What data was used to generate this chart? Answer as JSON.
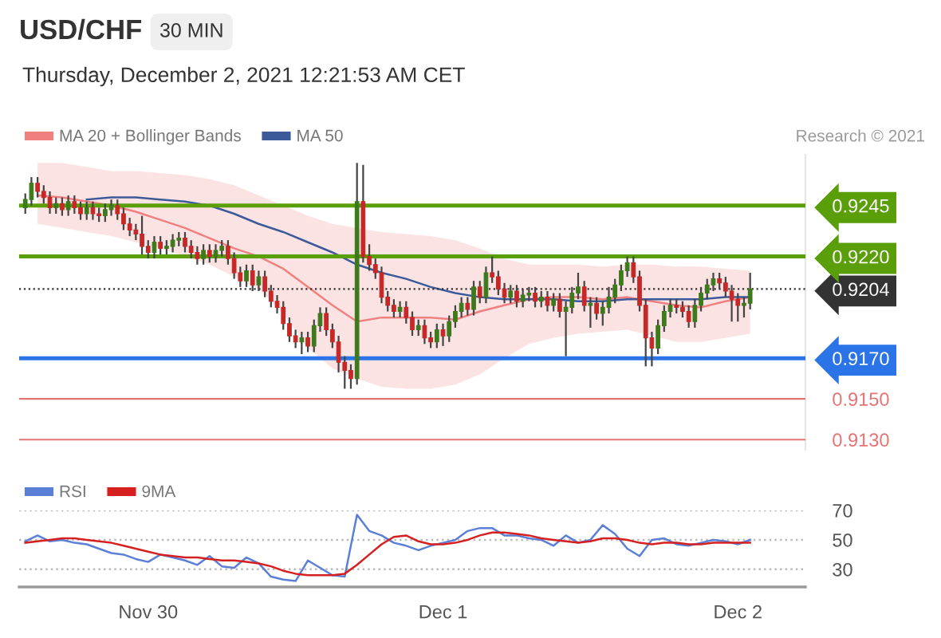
{
  "chart_data": [
    {
      "type": "candlestick",
      "title": "USD/CHF",
      "subtitle": "30 MIN",
      "annotations": [
        "Thursday, December 2, 2021 12:21:53 AM CET",
        "Research © 2021"
      ],
      "x": [
        "2021-11-29T14:00",
        "2021-11-29T14:30",
        "2021-11-29T15:00",
        "2021-11-29T15:30",
        "2021-11-29T16:00",
        "2021-11-29T16:30",
        "2021-11-29T17:00",
        "2021-11-29T17:30",
        "2021-11-29T18:00",
        "2021-11-29T18:30",
        "2021-11-29T19:00",
        "2021-11-29T19:30",
        "2021-11-29T20:00",
        "2021-11-29T20:30",
        "2021-11-29T21:00",
        "2021-11-29T21:30",
        "2021-11-29T22:00",
        "2021-11-29T22:30",
        "2021-11-29T23:00",
        "2021-11-29T23:30",
        "2021-11-30T00:00",
        "2021-11-30T00:30",
        "2021-11-30T01:00",
        "2021-11-30T01:30",
        "2021-11-30T02:00",
        "2021-11-30T02:30",
        "2021-11-30T03:00",
        "2021-11-30T03:30",
        "2021-11-30T04:00",
        "2021-11-30T04:30",
        "2021-11-30T05:00",
        "2021-11-30T05:30",
        "2021-11-30T06:00",
        "2021-11-30T06:30",
        "2021-11-30T07:00",
        "2021-11-30T07:30",
        "2021-11-30T08:00",
        "2021-11-30T08:30",
        "2021-11-30T09:00",
        "2021-11-30T09:30",
        "2021-11-30T10:00",
        "2021-11-30T10:30",
        "2021-11-30T11:00",
        "2021-11-30T11:30",
        "2021-11-30T12:00",
        "2021-11-30T12:30",
        "2021-11-30T13:00",
        "2021-11-30T13:30",
        "2021-11-30T14:00",
        "2021-11-30T14:30",
        "2021-11-30T15:00",
        "2021-11-30T15:30",
        "2021-11-30T16:00",
        "2021-11-30T16:30",
        "2021-11-30T17:00",
        "2021-11-30T17:30",
        "2021-11-30T18:00",
        "2021-11-30T18:30",
        "2021-11-30T19:00",
        "2021-11-30T19:30",
        "2021-11-30T20:00",
        "2021-11-30T20:30",
        "2021-11-30T21:00",
        "2021-11-30T21:30",
        "2021-11-30T22:00",
        "2021-11-30T22:30",
        "2021-11-30T23:00",
        "2021-11-30T23:30",
        "2021-12-01T00:00",
        "2021-12-01T00:30",
        "2021-12-01T01:00",
        "2021-12-01T01:30",
        "2021-12-01T02:00",
        "2021-12-01T02:30",
        "2021-12-01T03:00",
        "2021-12-01T03:30",
        "2021-12-01T04:00",
        "2021-12-01T04:30",
        "2021-12-01T05:00",
        "2021-12-01T05:30",
        "2021-12-01T06:00",
        "2021-12-01T06:30",
        "2021-12-01T07:00",
        "2021-12-01T07:30",
        "2021-12-01T08:00",
        "2021-12-01T08:30",
        "2021-12-01T09:00",
        "2021-12-01T09:30",
        "2021-12-01T10:00",
        "2021-12-01T10:30",
        "2021-12-01T11:00",
        "2021-12-01T11:30",
        "2021-12-01T12:00",
        "2021-12-01T12:30",
        "2021-12-01T13:00",
        "2021-12-01T13:30",
        "2021-12-01T14:00",
        "2021-12-01T14:30",
        "2021-12-01T15:00",
        "2021-12-01T15:30",
        "2021-12-01T16:00",
        "2021-12-01T16:30",
        "2021-12-01T17:00",
        "2021-12-01T17:30",
        "2021-12-01T18:00",
        "2021-12-01T18:30",
        "2021-12-01T19:00",
        "2021-12-01T19:30",
        "2021-12-01T20:00",
        "2021-12-01T20:30",
        "2021-12-01T21:00",
        "2021-12-01T21:30",
        "2021-12-01T22:00",
        "2021-12-01T22:30",
        "2021-12-01T23:00",
        "2021-12-01T23:30",
        "2021-12-02T00:00",
        "2021-12-02T00:30",
        "2021-12-02T01:00"
      ],
      "ohlc": [
        [
          0.9244,
          0.9251,
          0.9241,
          0.9248
        ],
        [
          0.9248,
          0.9259,
          0.9245,
          0.9256
        ],
        [
          0.9256,
          0.9259,
          0.9249,
          0.9252
        ],
        [
          0.9252,
          0.9255,
          0.9246,
          0.9249
        ],
        [
          0.9249,
          0.9252,
          0.9241,
          0.9244
        ],
        [
          0.9244,
          0.9249,
          0.9241,
          0.9246
        ],
        [
          0.9246,
          0.9249,
          0.924,
          0.9243
        ],
        [
          0.9243,
          0.925,
          0.924,
          0.9247
        ],
        [
          0.9247,
          0.925,
          0.9241,
          0.9244
        ],
        [
          0.9244,
          0.9247,
          0.9238,
          0.9241
        ],
        [
          0.9241,
          0.9247,
          0.9238,
          0.9244
        ],
        [
          0.9244,
          0.9247,
          0.9238,
          0.9241
        ],
        [
          0.9241,
          0.9244,
          0.9237,
          0.924
        ],
        [
          0.924,
          0.9246,
          0.9237,
          0.9243
        ],
        [
          0.9243,
          0.9248,
          0.924,
          0.9245
        ],
        [
          0.9245,
          0.9248,
          0.9238,
          0.9241
        ],
        [
          0.9241,
          0.9244,
          0.9233,
          0.9236
        ],
        [
          0.9236,
          0.9239,
          0.923,
          0.9233
        ],
        [
          0.9233,
          0.9236,
          0.9228,
          0.9231
        ],
        [
          0.9231,
          0.924,
          0.9221,
          0.9225
        ],
        [
          0.9225,
          0.9228,
          0.9219,
          0.9222
        ],
        [
          0.9222,
          0.923,
          0.9219,
          0.9227
        ],
        [
          0.9227,
          0.923,
          0.9221,
          0.9224
        ],
        [
          0.9224,
          0.9228,
          0.9221,
          0.9225
        ],
        [
          0.9225,
          0.9231,
          0.9222,
          0.9228
        ],
        [
          0.9228,
          0.9232,
          0.9225,
          0.9229
        ],
        [
          0.9229,
          0.9232,
          0.9222,
          0.9225
        ],
        [
          0.9225,
          0.9228,
          0.9219,
          0.9222
        ],
        [
          0.9222,
          0.9225,
          0.9216,
          0.9219
        ],
        [
          0.9219,
          0.9226,
          0.9216,
          0.9223
        ],
        [
          0.9223,
          0.9226,
          0.9217,
          0.922
        ],
        [
          0.922,
          0.9226,
          0.9217,
          0.9223
        ],
        [
          0.9223,
          0.9228,
          0.922,
          0.9225
        ],
        [
          0.9225,
          0.9228,
          0.9216,
          0.9219
        ],
        [
          0.9219,
          0.9222,
          0.9209,
          0.9212
        ],
        [
          0.9212,
          0.9215,
          0.9205,
          0.9208
        ],
        [
          0.9208,
          0.9216,
          0.9205,
          0.9213
        ],
        [
          0.9213,
          0.9216,
          0.9203,
          0.9206
        ],
        [
          0.9206,
          0.9213,
          0.9203,
          0.921
        ],
        [
          0.921,
          0.9213,
          0.92,
          0.9203
        ],
        [
          0.9203,
          0.9206,
          0.9195,
          0.9198
        ],
        [
          0.9198,
          0.9201,
          0.9192,
          0.9195
        ],
        [
          0.9195,
          0.9198,
          0.9184,
          0.9187
        ],
        [
          0.9187,
          0.919,
          0.9178,
          0.9181
        ],
        [
          0.9181,
          0.9184,
          0.9175,
          0.9178
        ],
        [
          0.9178,
          0.9183,
          0.9172,
          0.918
        ],
        [
          0.918,
          0.9183,
          0.9173,
          0.9176
        ],
        [
          0.9176,
          0.9189,
          0.9173,
          0.9186
        ],
        [
          0.9186,
          0.9195,
          0.9183,
          0.9192
        ],
        [
          0.9192,
          0.9195,
          0.9181,
          0.9184
        ],
        [
          0.9184,
          0.9187,
          0.9175,
          0.9178
        ],
        [
          0.9178,
          0.9181,
          0.9163,
          0.9168
        ],
        [
          0.9168,
          0.9171,
          0.9155,
          0.9164
        ],
        [
          0.9164,
          0.9167,
          0.9155,
          0.916
        ],
        [
          0.916,
          0.9266,
          0.9157,
          0.9247
        ],
        [
          0.9247,
          0.9265,
          0.9217,
          0.922
        ],
        [
          0.922,
          0.9226,
          0.9213,
          0.9216
        ],
        [
          0.9216,
          0.9219,
          0.9209,
          0.9212
        ],
        [
          0.9212,
          0.9215,
          0.9197,
          0.92
        ],
        [
          0.92,
          0.9203,
          0.9193,
          0.9196
        ],
        [
          0.9196,
          0.9199,
          0.919,
          0.9193
        ],
        [
          0.9193,
          0.9198,
          0.919,
          0.9195
        ],
        [
          0.9195,
          0.9198,
          0.9187,
          0.919
        ],
        [
          0.919,
          0.9193,
          0.9181,
          0.9184
        ],
        [
          0.9184,
          0.9189,
          0.9181,
          0.9186
        ],
        [
          0.9186,
          0.9189,
          0.9177,
          0.918
        ],
        [
          0.918,
          0.9183,
          0.9175,
          0.9178
        ],
        [
          0.9178,
          0.9187,
          0.9175,
          0.9184
        ],
        [
          0.9184,
          0.9187,
          0.9176,
          0.9181
        ],
        [
          0.9181,
          0.9191,
          0.9178,
          0.9188
        ],
        [
          0.9188,
          0.9196,
          0.9185,
          0.9193
        ],
        [
          0.9193,
          0.92,
          0.919,
          0.9197
        ],
        [
          0.9197,
          0.92,
          0.9191,
          0.9194
        ],
        [
          0.9194,
          0.9208,
          0.9191,
          0.9205
        ],
        [
          0.9205,
          0.9208,
          0.9197,
          0.92
        ],
        [
          0.92,
          0.9215,
          0.9197,
          0.9212
        ],
        [
          0.9212,
          0.922,
          0.9207,
          0.921
        ],
        [
          0.921,
          0.9213,
          0.9201,
          0.9204
        ],
        [
          0.9204,
          0.9207,
          0.9197,
          0.92
        ],
        [
          0.92,
          0.9206,
          0.9197,
          0.9203
        ],
        [
          0.9203,
          0.9206,
          0.9195,
          0.9198
        ],
        [
          0.9198,
          0.9204,
          0.9195,
          0.9201
        ],
        [
          0.9201,
          0.9205,
          0.9198,
          0.9202
        ],
        [
          0.9202,
          0.9205,
          0.9195,
          0.9198
        ],
        [
          0.9198,
          0.9203,
          0.9195,
          0.92
        ],
        [
          0.92,
          0.9203,
          0.9193,
          0.9196
        ],
        [
          0.9196,
          0.9202,
          0.9193,
          0.9199
        ],
        [
          0.9199,
          0.9202,
          0.919,
          0.9193
        ],
        [
          0.9193,
          0.9198,
          0.9171,
          0.9195
        ],
        [
          0.9195,
          0.9205,
          0.9192,
          0.9202
        ],
        [
          0.9202,
          0.9212,
          0.9199,
          0.9205
        ],
        [
          0.9205,
          0.9208,
          0.9193,
          0.9196
        ],
        [
          0.9196,
          0.92,
          0.9185,
          0.9197
        ],
        [
          0.9197,
          0.92,
          0.9189,
          0.9192
        ],
        [
          0.9192,
          0.9198,
          0.9186,
          0.9195
        ],
        [
          0.9195,
          0.9205,
          0.9192,
          0.92
        ],
        [
          0.92,
          0.9209,
          0.9197,
          0.9206
        ],
        [
          0.9206,
          0.9216,
          0.9203,
          0.9213
        ],
        [
          0.9213,
          0.922,
          0.921,
          0.9217
        ],
        [
          0.9217,
          0.922,
          0.9207,
          0.921
        ],
        [
          0.921,
          0.9213,
          0.9193,
          0.9196
        ],
        [
          0.9196,
          0.9199,
          0.9166,
          0.918
        ],
        [
          0.918,
          0.9183,
          0.9166,
          0.9175
        ],
        [
          0.9175,
          0.9189,
          0.9172,
          0.9186
        ],
        [
          0.9186,
          0.9196,
          0.9183,
          0.9193
        ],
        [
          0.9193,
          0.9199,
          0.919,
          0.9196
        ],
        [
          0.9196,
          0.9199,
          0.9192,
          0.9195
        ],
        [
          0.9195,
          0.9198,
          0.919,
          0.9193
        ],
        [
          0.9193,
          0.9196,
          0.9185,
          0.9188
        ],
        [
          0.9188,
          0.9199,
          0.9185,
          0.9196
        ],
        [
          0.9196,
          0.9205,
          0.9193,
          0.9202
        ],
        [
          0.9202,
          0.9209,
          0.9199,
          0.9206
        ],
        [
          0.9206,
          0.9212,
          0.9203,
          0.9209
        ],
        [
          0.9209,
          0.9212,
          0.9204,
          0.9207
        ],
        [
          0.9207,
          0.921,
          0.92,
          0.9203
        ],
        [
          0.9203,
          0.9206,
          0.9188,
          0.9199
        ],
        [
          0.9199,
          0.9202,
          0.9188,
          0.9196
        ],
        [
          0.9196,
          0.92,
          0.919,
          0.9197
        ],
        [
          0.9197,
          0.9212,
          0.9194,
          0.9204
        ]
      ],
      "series": [
        {
          "type": "line",
          "name": "MA 20 + Bollinger Bands",
          "color": "#f08080",
          "x": [
            "2021-11-29T15:00",
            "2021-11-29T17:00",
            "2021-11-29T19:00",
            "2021-11-29T21:00",
            "2021-11-29T23:00",
            "2021-11-30T01:00",
            "2021-11-30T03:00",
            "2021-11-30T05:00",
            "2021-11-30T07:00",
            "2021-11-30T09:00",
            "2021-11-30T11:00",
            "2021-11-30T13:00",
            "2021-11-30T15:00",
            "2021-11-30T17:00",
            "2021-11-30T19:00",
            "2021-11-30T21:00",
            "2021-11-30T23:00",
            "2021-12-01T01:00",
            "2021-12-01T03:00",
            "2021-12-01T05:00",
            "2021-12-01T07:00",
            "2021-12-01T09:00",
            "2021-12-01T11:00",
            "2021-12-01T13:00",
            "2021-12-01T15:00",
            "2021-12-01T17:00",
            "2021-12-01T19:00",
            "2021-12-01T21:00",
            "2021-12-01T23:00",
            "2021-12-02T01:00"
          ],
          "values": [
            0.925,
            0.9249,
            0.9247,
            0.9245,
            0.9242,
            0.9238,
            0.9234,
            0.9229,
            0.9224,
            0.922,
            0.9214,
            0.9205,
            0.9196,
            0.9188,
            0.919,
            0.919,
            0.919,
            0.9189,
            0.9193,
            0.9196,
            0.9199,
            0.92,
            0.92,
            0.9199,
            0.92,
            0.9198,
            0.9196,
            0.9195,
            0.9198,
            0.92
          ],
          "upper": [
            0.9266,
            0.9266,
            0.9264,
            0.9262,
            0.9262,
            0.9261,
            0.926,
            0.9258,
            0.9255,
            0.925,
            0.9245,
            0.924,
            0.9236,
            0.9234,
            0.9232,
            0.9231,
            0.923,
            0.9228,
            0.9224,
            0.9219,
            0.9216,
            0.9216,
            0.9216,
            0.9215,
            0.9216,
            0.9216,
            0.9215,
            0.9215,
            0.9214,
            0.9213
          ],
          "lower": [
            0.9236,
            0.9234,
            0.9232,
            0.923,
            0.9227,
            0.9224,
            0.922,
            0.9216,
            0.921,
            0.9204,
            0.9192,
            0.9175,
            0.9165,
            0.916,
            0.9156,
            0.9155,
            0.9155,
            0.9157,
            0.9162,
            0.917,
            0.9177,
            0.918,
            0.9182,
            0.9183,
            0.9184,
            0.9181,
            0.9178,
            0.9178,
            0.918,
            0.9182
          ]
        },
        {
          "type": "line",
          "name": "MA 50",
          "color": "#3c5a99",
          "x": [
            "2021-11-29T19:00",
            "2021-11-29T21:00",
            "2021-11-29T23:00",
            "2021-11-30T01:00",
            "2021-11-30T03:00",
            "2021-11-30T05:00",
            "2021-11-30T07:00",
            "2021-11-30T09:00",
            "2021-11-30T11:00",
            "2021-11-30T13:00",
            "2021-11-30T15:00",
            "2021-11-30T17:00",
            "2021-11-30T19:00",
            "2021-11-30T21:00",
            "2021-11-30T23:00",
            "2021-12-01T01:00",
            "2021-12-01T03:00",
            "2021-12-01T05:00",
            "2021-12-01T07:00",
            "2021-12-01T09:00",
            "2021-12-01T11:00",
            "2021-12-01T13:00",
            "2021-12-01T15:00",
            "2021-12-01T17:00",
            "2021-12-01T19:00",
            "2021-12-01T21:00",
            "2021-12-01T23:00",
            "2021-12-02T01:00"
          ],
          "values": [
            0.9248,
            0.9249,
            0.9249,
            0.9248,
            0.9247,
            0.9245,
            0.9241,
            0.9236,
            0.9232,
            0.9227,
            0.9222,
            0.9216,
            0.9212,
            0.9209,
            0.9205,
            0.9202,
            0.92,
            0.9199,
            0.9199,
            0.9199,
            0.9198,
            0.9198,
            0.9199,
            0.9199,
            0.9199,
            0.9199,
            0.92,
            0.92
          ]
        }
      ],
      "ref_lines": [
        {
          "axis": "y",
          "value": 0.9245,
          "color": "#5a9e0a",
          "line_style": "solid"
        },
        {
          "axis": "y",
          "value": 0.922,
          "color": "#5a9e0a",
          "line_style": "solid"
        },
        {
          "axis": "y",
          "value": 0.9204,
          "color": "#333333",
          "line_style": "dotted"
        },
        {
          "axis": "y",
          "value": 0.917,
          "color": "#2a74e8",
          "line_style": "solid"
        },
        {
          "axis": "y",
          "value": 0.915,
          "color": "#e57373",
          "line_style": "solid"
        },
        {
          "axis": "y",
          "value": 0.913,
          "color": "#e57373",
          "line_style": "solid"
        }
      ],
      "yticks": [
        {
          "value": 0.913,
          "label": "0.9130"
        },
        {
          "value": 0.915,
          "label": "0.9150"
        },
        {
          "value": 0.917,
          "label": "0.9170"
        },
        {
          "value": 0.9204,
          "label": "0.9204"
        },
        {
          "value": 0.922,
          "label": "0.9220"
        },
        {
          "value": 0.9245,
          "label": "0.9245"
        }
      ],
      "xlim": [
        "2021-11-29T13:30",
        "2021-12-02T05:30"
      ],
      "ylim": [
        0.9125,
        0.927
      ],
      "tick_labels": "y",
      "legend": "top left"
    },
    {
      "type": "line",
      "x": [
        "2021-11-29T14:00",
        "2021-11-29T15:00",
        "2021-11-29T16:00",
        "2021-11-29T17:00",
        "2021-11-29T18:00",
        "2021-11-29T19:00",
        "2021-11-29T20:00",
        "2021-11-29T21:00",
        "2021-11-29T22:00",
        "2021-11-29T23:00",
        "2021-11-30T00:00",
        "2021-11-30T01:00",
        "2021-11-30T02:00",
        "2021-11-30T03:00",
        "2021-11-30T04:00",
        "2021-11-30T05:00",
        "2021-11-30T06:00",
        "2021-11-30T07:00",
        "2021-11-30T08:00",
        "2021-11-30T09:00",
        "2021-11-30T10:00",
        "2021-11-30T11:00",
        "2021-11-30T12:00",
        "2021-11-30T13:00",
        "2021-11-30T14:00",
        "2021-11-30T15:00",
        "2021-11-30T16:00",
        "2021-11-30T17:00",
        "2021-11-30T18:00",
        "2021-11-30T19:00",
        "2021-11-30T20:00",
        "2021-11-30T21:00",
        "2021-11-30T22:00",
        "2021-11-30T23:00",
        "2021-12-01T00:00",
        "2021-12-01T01:00",
        "2021-12-01T02:00",
        "2021-12-01T03:00",
        "2021-12-01T04:00",
        "2021-12-01T05:00",
        "2021-12-01T06:00",
        "2021-12-01T07:00",
        "2021-12-01T08:00",
        "2021-12-01T09:00",
        "2021-12-01T10:00",
        "2021-12-01T11:00",
        "2021-12-01T12:00",
        "2021-12-01T13:00",
        "2021-12-01T14:00",
        "2021-12-01T15:00",
        "2021-12-01T16:00",
        "2021-12-01T17:00",
        "2021-12-01T18:00",
        "2021-12-01T19:00",
        "2021-12-01T20:00",
        "2021-12-01T21:00",
        "2021-12-01T22:00",
        "2021-12-01T23:00",
        "2021-12-02T00:00",
        "2021-12-02T01:00"
      ],
      "series": [
        {
          "name": "RSI",
          "color": "#5b7fd6",
          "values": [
            49,
            53,
            49,
            50,
            48,
            47,
            44,
            41,
            40,
            37,
            35,
            40,
            38,
            36,
            33,
            39,
            32,
            31,
            38,
            34,
            25,
            23,
            22,
            36,
            31,
            26,
            25,
            67,
            56,
            53,
            48,
            46,
            43,
            46,
            48,
            50,
            56,
            58,
            58,
            53,
            53,
            51,
            50,
            46,
            53,
            48,
            50,
            60,
            54,
            44,
            39,
            50,
            51,
            47,
            46,
            48,
            50,
            49,
            47,
            50
          ]
        },
        {
          "name": "9MA",
          "color": "#d62020",
          "values": [
            48,
            49,
            50,
            51,
            51,
            50,
            49,
            48,
            46,
            44,
            42,
            40,
            39,
            38,
            38,
            37,
            36,
            36,
            35,
            34,
            32,
            29,
            27,
            26,
            26,
            26,
            27,
            33,
            40,
            47,
            52,
            53,
            49,
            47,
            47,
            48,
            50,
            53,
            55,
            55,
            54,
            53,
            51,
            50,
            49,
            48,
            49,
            51,
            51,
            50,
            48,
            47,
            48,
            48,
            47,
            47,
            48,
            48,
            48,
            48
          ]
        }
      ],
      "xlim": [
        "2021-11-29T13:30",
        "2021-12-02T05:30"
      ],
      "xticks": [
        {
          "value": "2021-11-30",
          "label": "Nov 30"
        },
        {
          "value": "2021-12-01",
          "label": "Dec 1"
        },
        {
          "value": "2021-12-02",
          "label": "Dec 2"
        }
      ],
      "ylim": [
        18,
        70
      ],
      "yticks": [
        30,
        50,
        70
      ],
      "grid": "y",
      "legend": "top left",
      "line_style": "solid",
      "marker": "none"
    }
  ]
}
